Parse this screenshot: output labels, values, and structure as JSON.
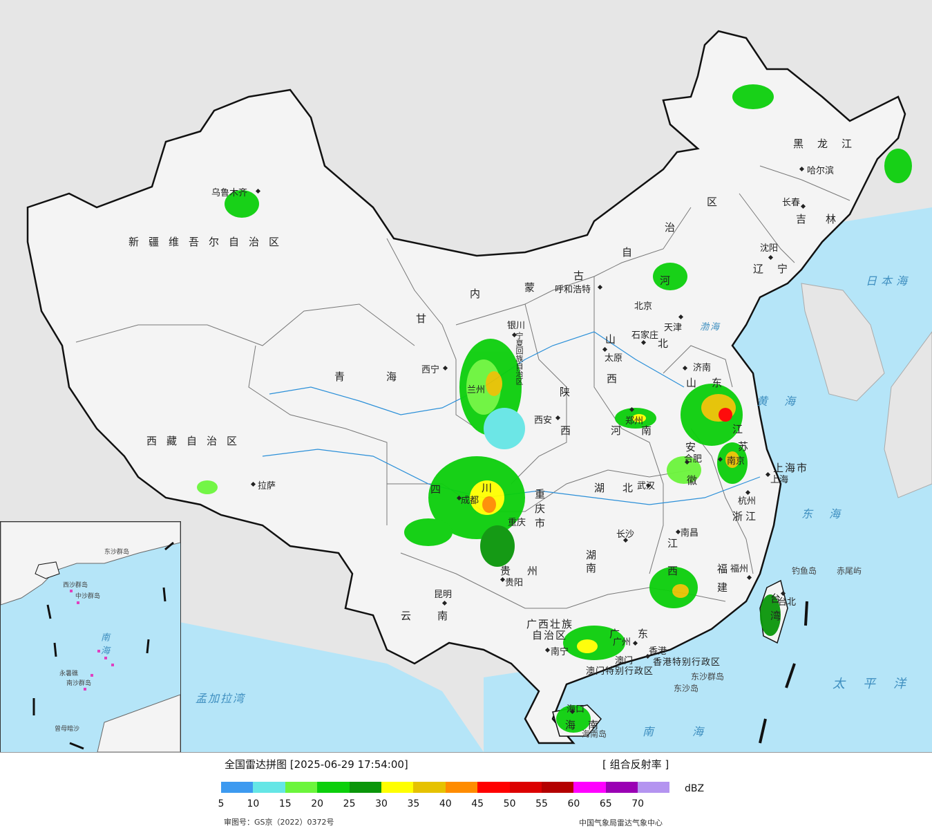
{
  "legend": {
    "title": "全国雷达拼图 [2025-06-29 17:54:00]",
    "product": "[ 组合反射率 ]",
    "unit": "dBZ",
    "colors": [
      "#3d9af0",
      "#65e6e6",
      "#6cf53c",
      "#0ccf0c",
      "#0a960a",
      "#ffff00",
      "#e6c200",
      "#ff8c00",
      "#ff0000",
      "#dc0000",
      "#b40000",
      "#ff00ff",
      "#9a00b4",
      "#b494f0"
    ],
    "ticks": [
      "5",
      "10",
      "15",
      "20",
      "25",
      "30",
      "35",
      "40",
      "45",
      "50",
      "55",
      "60",
      "65",
      "70"
    ],
    "approval_no": "审图号：GS京（2022）0372号",
    "agency": "中国气象局雷达气象中心"
  },
  "map": {
    "province_labels": [
      {
        "text": "新疆维吾尔自治区"
      },
      {
        "text": "西藏自治区"
      },
      {
        "text": "青海"
      },
      {
        "text": "甘"
      },
      {
        "text": "内"
      },
      {
        "text": "蒙"
      },
      {
        "text": "古"
      },
      {
        "text": "自"
      },
      {
        "text": "治"
      },
      {
        "text": "区"
      },
      {
        "text": "黑龙江"
      },
      {
        "text": "吉林"
      },
      {
        "text": "辽宁"
      },
      {
        "text": "河"
      },
      {
        "text": "北"
      },
      {
        "text": "山"
      },
      {
        "text": "西"
      },
      {
        "text": "陕"
      },
      {
        "text": "西"
      },
      {
        "text": "河"
      },
      {
        "text": "南"
      },
      {
        "text": "山"
      },
      {
        "text": "东"
      },
      {
        "text": "四"
      },
      {
        "text": "川"
      },
      {
        "text": "重庆市"
      },
      {
        "text": "湖北"
      },
      {
        "text": "湖南"
      },
      {
        "text": "贵州"
      },
      {
        "text": "云南"
      },
      {
        "text": "广西壮族"
      },
      {
        "text": "自治区"
      },
      {
        "text": "广东"
      },
      {
        "text": "江"
      },
      {
        "text": "西"
      },
      {
        "text": "福建"
      },
      {
        "text": "浙江"
      },
      {
        "text": "安"
      },
      {
        "text": "徽"
      },
      {
        "text": "江"
      },
      {
        "text": "苏"
      },
      {
        "text": "上海市"
      },
      {
        "text": "海南"
      },
      {
        "text": "台湾"
      },
      {
        "text": "宁夏回族自治区"
      },
      {
        "text": "香港特别行政区"
      },
      {
        "text": "澳门特别行政区"
      }
    ],
    "cities": [
      {
        "name": "乌鲁木齐"
      },
      {
        "name": "拉萨"
      },
      {
        "name": "西宁"
      },
      {
        "name": "兰州"
      },
      {
        "name": "银川"
      },
      {
        "name": "呼和浩特"
      },
      {
        "name": "北京"
      },
      {
        "name": "天津"
      },
      {
        "name": "石家庄"
      },
      {
        "name": "太原"
      },
      {
        "name": "西安"
      },
      {
        "name": "郑州"
      },
      {
        "name": "济南"
      },
      {
        "name": "合肥"
      },
      {
        "name": "南京"
      },
      {
        "name": "上海"
      },
      {
        "name": "杭州"
      },
      {
        "name": "武汉"
      },
      {
        "name": "长沙"
      },
      {
        "name": "南昌"
      },
      {
        "name": "福州"
      },
      {
        "name": "成都"
      },
      {
        "name": "重庆"
      },
      {
        "name": "贵阳"
      },
      {
        "name": "昆明"
      },
      {
        "name": "南宁"
      },
      {
        "name": "广州"
      },
      {
        "name": "香港"
      },
      {
        "name": "澳门"
      },
      {
        "name": "海口"
      },
      {
        "name": "台北"
      },
      {
        "name": "沈阳"
      },
      {
        "name": "长春"
      },
      {
        "name": "哈尔滨"
      }
    ],
    "seas": [
      {
        "text": "日本海"
      },
      {
        "text": "黄海"
      },
      {
        "text": "东海"
      },
      {
        "text": "太平洋"
      },
      {
        "text": "南海"
      },
      {
        "text": "孟加拉湾"
      },
      {
        "text": "渤海"
      }
    ],
    "islands": [
      {
        "text": "钓鱼岛"
      },
      {
        "text": "赤尾屿"
      },
      {
        "text": "东沙群岛"
      },
      {
        "text": "东沙岛"
      },
      {
        "text": "海南岛"
      }
    ],
    "inset_labels": [
      {
        "text": "南海"
      },
      {
        "text": "中沙群岛"
      },
      {
        "text": "南沙群岛"
      },
      {
        "text": "曾母暗沙"
      },
      {
        "text": "永暑礁"
      },
      {
        "text": "东沙群岛"
      },
      {
        "text": "西沙群岛"
      }
    ]
  }
}
